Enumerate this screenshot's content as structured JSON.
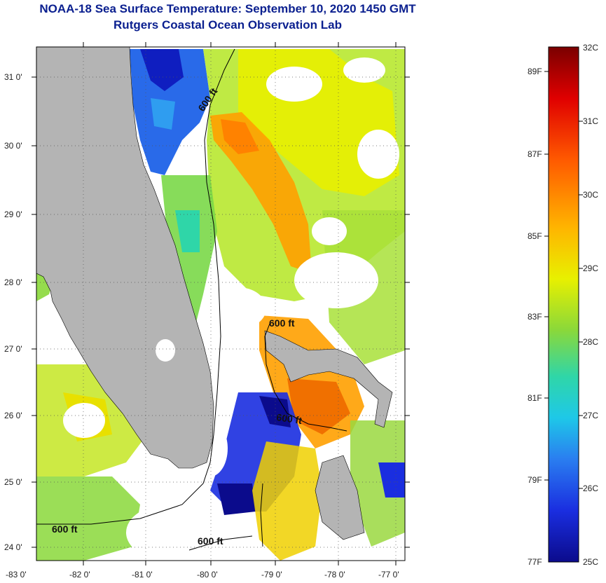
{
  "header": {
    "title": "NOAA-18 Sea Surface Temperature:  September 10, 2020 1450 GMT",
    "subtitle": "Rutgers Coastal Ocean Observation Lab"
  },
  "map": {
    "lon_labels": [
      "-83 0'",
      "-82 0'",
      "-81 0'",
      "-80 0'",
      "-79 0'",
      "-78 0'",
      "-77 0'"
    ],
    "lat_labels": [
      "31 0'",
      "30 0'",
      "29 0'",
      "28 0'",
      "27 0'",
      "26 0'",
      "25 0'",
      "24 0'"
    ],
    "contour_label": "600 ft",
    "land_color": "#b4b4b4",
    "cloud_color": "#ffffff"
  },
  "colorbar": {
    "celsius_labels": [
      "32C",
      "31C",
      "30C",
      "29C",
      "28C",
      "27C",
      "26C",
      "25C"
    ],
    "fahrenheit_labels": [
      "89F",
      "87F",
      "85F",
      "83F",
      "81F",
      "79F",
      "77F"
    ],
    "colors": [
      "#7a0000",
      "#e00000",
      "#ff5a00",
      "#ffb400",
      "#e8f000",
      "#8ad83a",
      "#2fd6a8",
      "#1ec8e8",
      "#2a7ef0",
      "#1a2ee0",
      "#0b0b8c"
    ]
  }
}
